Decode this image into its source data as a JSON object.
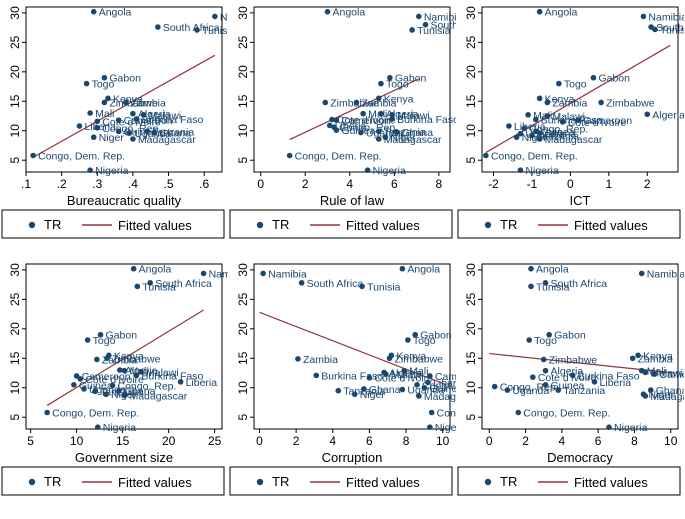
{
  "legend": {
    "dot_label": "TR",
    "line_label": "Fitted values"
  },
  "colors": {
    "points": "#1a476f",
    "fit": "#90353b",
    "text": "#000000",
    "frame": "#000000"
  },
  "chart_data": [
    {
      "type": "scatter",
      "xlabel": "Bureaucratic quality",
      "ylabel": "",
      "xlim": [
        0.1,
        0.65
      ],
      "ylim": [
        3,
        31
      ],
      "xticks": [
        0.1,
        0.2,
        0.3,
        0.4,
        0.5,
        0.6
      ],
      "xtick_labels": [
        ".1",
        ".2",
        ".3",
        ".4",
        ".5",
        ".6"
      ],
      "yticks": [
        5,
        10,
        15,
        20,
        25,
        30
      ],
      "fit": {
        "x": [
          0.12,
          0.63
        ],
        "y": [
          5.5,
          22.8
        ]
      },
      "points": [
        {
          "x": 0.29,
          "y": 30.2,
          "label": "Angola"
        },
        {
          "x": 0.63,
          "y": 29.4,
          "label": "Namibia"
        },
        {
          "x": 0.47,
          "y": 27.6,
          "label": "South Africa"
        },
        {
          "x": 0.58,
          "y": 27.1,
          "label": "Tunisia"
        },
        {
          "x": 0.32,
          "y": 19.0,
          "label": "Gabon"
        },
        {
          "x": 0.27,
          "y": 18.0,
          "label": "Togo"
        },
        {
          "x": 0.32,
          "y": 14.8,
          "label": "Zimbabwe"
        },
        {
          "x": 0.33,
          "y": 15.5,
          "label": "Kenya"
        },
        {
          "x": 0.38,
          "y": 14.8,
          "label": "Zambia"
        },
        {
          "x": 0.28,
          "y": 13.0,
          "label": "Mali"
        },
        {
          "x": 0.4,
          "y": 12.9,
          "label": "Algeria"
        },
        {
          "x": 0.43,
          "y": 12.7,
          "label": "Malawi"
        },
        {
          "x": 0.3,
          "y": 11.6,
          "label": "Cote d'Ivoire"
        },
        {
          "x": 0.36,
          "y": 11.8,
          "label": "Cameroon"
        },
        {
          "x": 0.41,
          "y": 12.0,
          "label": "Burkina Faso"
        },
        {
          "x": 0.25,
          "y": 10.8,
          "label": "Liberia"
        },
        {
          "x": 0.3,
          "y": 10.5,
          "label": "Congo, Rep."
        },
        {
          "x": 0.36,
          "y": 9.9,
          "label": "Guinea"
        },
        {
          "x": 0.39,
          "y": 9.6,
          "label": "Uganda"
        },
        {
          "x": 0.44,
          "y": 9.9,
          "label": "Tanzania"
        },
        {
          "x": 0.46,
          "y": 9.7,
          "label": "Ghana"
        },
        {
          "x": 0.29,
          "y": 8.9,
          "label": "Niger"
        },
        {
          "x": 0.4,
          "y": 8.6,
          "label": "Madagascar"
        },
        {
          "x": 0.12,
          "y": 5.8,
          "label": "Congo, Dem. Rep."
        },
        {
          "x": 0.28,
          "y": 3.3,
          "label": "Nigeria"
        }
      ]
    },
    {
      "type": "scatter",
      "xlabel": "Rule of law",
      "ylabel": "",
      "xlim": [
        -0.3,
        8.5
      ],
      "ylim": [
        3,
        31
      ],
      "xticks": [
        0,
        2,
        4,
        6,
        8
      ],
      "xtick_labels": [
        "0",
        "2",
        "4",
        "6",
        "8"
      ],
      "yticks": [
        5,
        10,
        15,
        20,
        25,
        30
      ],
      "fit": {
        "x": [
          1.3,
          7.1
        ],
        "y": [
          8.5,
          18.8
        ]
      },
      "points": [
        {
          "x": 3.0,
          "y": 30.2,
          "label": "Angola"
        },
        {
          "x": 7.1,
          "y": 29.4,
          "label": "Namibia"
        },
        {
          "x": 7.4,
          "y": 28.0,
          "label": "South Africa"
        },
        {
          "x": 6.8,
          "y": 27.1,
          "label": "Tunisia"
        },
        {
          "x": 5.8,
          "y": 19.0,
          "label": "Gabon"
        },
        {
          "x": 5.4,
          "y": 18.0,
          "label": "Togo"
        },
        {
          "x": 2.9,
          "y": 14.8,
          "label": "Zimbabwe"
        },
        {
          "x": 5.3,
          "y": 15.5,
          "label": "Kenya"
        },
        {
          "x": 4.3,
          "y": 14.8,
          "label": "Zambia"
        },
        {
          "x": 4.6,
          "y": 12.9,
          "label": "Mali"
        },
        {
          "x": 5.4,
          "y": 12.9,
          "label": "Algeria"
        },
        {
          "x": 5.9,
          "y": 12.7,
          "label": "Malawi"
        },
        {
          "x": 3.2,
          "y": 11.9,
          "label": "Cote d'Ivoire"
        },
        {
          "x": 3.4,
          "y": 11.8,
          "label": "Cameroon"
        },
        {
          "x": 5.9,
          "y": 12.0,
          "label": "Burkina Faso"
        },
        {
          "x": 3.1,
          "y": 10.9,
          "label": "Liberia"
        },
        {
          "x": 3.3,
          "y": 10.6,
          "label": "Congo, Rep."
        },
        {
          "x": 3.4,
          "y": 10.1,
          "label": "Guinea"
        },
        {
          "x": 4.5,
          "y": 9.7,
          "label": "Uganda"
        },
        {
          "x": 5.3,
          "y": 9.9,
          "label": "Tanzania"
        },
        {
          "x": 6.1,
          "y": 9.8,
          "label": "Ghana"
        },
        {
          "x": 5.6,
          "y": 8.9,
          "label": "Niger"
        },
        {
          "x": 5.3,
          "y": 8.6,
          "label": "Madagascar"
        },
        {
          "x": 1.3,
          "y": 5.8,
          "label": "Congo, Dem. Rep."
        },
        {
          "x": 4.8,
          "y": 3.3,
          "label": "Nigeria"
        }
      ]
    },
    {
      "type": "scatter",
      "xlabel": "ICT",
      "ylabel": "",
      "xlim": [
        -2.3,
        2.8
      ],
      "ylim": [
        3,
        31
      ],
      "xticks": [
        -2,
        -1,
        0,
        1,
        2
      ],
      "xtick_labels": [
        "-2",
        "-1",
        "0",
        "1",
        "2"
      ],
      "yticks": [
        5,
        10,
        15,
        20,
        25,
        30
      ],
      "fit": {
        "x": [
          -2.2,
          2.6
        ],
        "y": [
          6.3,
          24.5
        ]
      },
      "points": [
        {
          "x": -0.8,
          "y": 30.2,
          "label": "Angola"
        },
        {
          "x": 1.9,
          "y": 29.4,
          "label": "Namibia"
        },
        {
          "x": 2.1,
          "y": 27.6,
          "label": "South Africa"
        },
        {
          "x": 2.2,
          "y": 27.2,
          "label": "Tunisia"
        },
        {
          "x": 0.6,
          "y": 19.0,
          "label": "Gabon"
        },
        {
          "x": -0.3,
          "y": 18.0,
          "label": "Togo"
        },
        {
          "x": 0.8,
          "y": 14.8,
          "label": "Zimbabwe"
        },
        {
          "x": -0.8,
          "y": 15.5,
          "label": "Kenya"
        },
        {
          "x": -0.6,
          "y": 14.8,
          "label": "Zambia"
        },
        {
          "x": 2.0,
          "y": 12.8,
          "label": "Algeria"
        },
        {
          "x": -1.1,
          "y": 12.7,
          "label": "Mali"
        },
        {
          "x": -0.6,
          "y": 12.5,
          "label": "Malawi"
        },
        {
          "x": 0.2,
          "y": 11.8,
          "label": "Cameroon"
        },
        {
          "x": -0.2,
          "y": 11.5,
          "label": "Cote d'Ivoire"
        },
        {
          "x": -0.9,
          "y": 11.9,
          "label": "Burkina Faso"
        },
        {
          "x": -1.6,
          "y": 10.8,
          "label": "Liberia"
        },
        {
          "x": -1.2,
          "y": 10.4,
          "label": "Congo, Rep."
        },
        {
          "x": -0.9,
          "y": 9.9,
          "label": "Guinea"
        },
        {
          "x": -1.3,
          "y": 9.5,
          "label": "Uganda"
        },
        {
          "x": -0.8,
          "y": 9.6,
          "label": "Ghana"
        },
        {
          "x": -1.0,
          "y": 9.2,
          "label": "Tanzania"
        },
        {
          "x": -1.4,
          "y": 8.9,
          "label": "Niger"
        },
        {
          "x": -0.8,
          "y": 8.6,
          "label": "Madagascar"
        },
        {
          "x": -2.2,
          "y": 5.8,
          "label": "Congo, Dem. Rep."
        },
        {
          "x": -1.3,
          "y": 3.3,
          "label": "Nigeria"
        }
      ]
    },
    {
      "type": "scatter",
      "xlabel": "Government size",
      "ylabel": "",
      "xlim": [
        4.5,
        25.8
      ],
      "ylim": [
        3,
        31
      ],
      "xticks": [
        5,
        10,
        15,
        20,
        25
      ],
      "xtick_labels": [
        "5",
        "10",
        "15",
        "20",
        "25"
      ],
      "yticks": [
        5,
        10,
        15,
        20,
        25,
        30
      ],
      "fit": {
        "x": [
          6.8,
          23.8
        ],
        "y": [
          7.0,
          23.2
        ]
      },
      "points": [
        {
          "x": 16.2,
          "y": 30.2,
          "label": "Angola"
        },
        {
          "x": 23.8,
          "y": 29.4,
          "label": "Namibia"
        },
        {
          "x": 18.0,
          "y": 27.8,
          "label": "South Africa"
        },
        {
          "x": 16.6,
          "y": 27.2,
          "label": "Tunisia"
        },
        {
          "x": 12.6,
          "y": 19.0,
          "label": "Gabon"
        },
        {
          "x": 11.2,
          "y": 18.1,
          "label": "Togo"
        },
        {
          "x": 13.5,
          "y": 15.5,
          "label": "Kenya"
        },
        {
          "x": 13.3,
          "y": 15.0,
          "label": "Zimbabwe"
        },
        {
          "x": 12.2,
          "y": 14.8,
          "label": "Zambia"
        },
        {
          "x": 14.7,
          "y": 13.0,
          "label": "Algeria"
        },
        {
          "x": 15.2,
          "y": 12.9,
          "label": "Mali"
        },
        {
          "x": 17.0,
          "y": 12.7,
          "label": "Malawi"
        },
        {
          "x": 10.0,
          "y": 12.0,
          "label": "Cameroon"
        },
        {
          "x": 16.5,
          "y": 12.1,
          "label": "Burkina Faso"
        },
        {
          "x": 10.4,
          "y": 11.5,
          "label": "Cote d'Ivoire"
        },
        {
          "x": 21.3,
          "y": 11.0,
          "label": "Liberia"
        },
        {
          "x": 9.7,
          "y": 10.5,
          "label": "Guinea"
        },
        {
          "x": 13.9,
          "y": 10.4,
          "label": "Congo, Rep."
        },
        {
          "x": 10.8,
          "y": 9.8,
          "label": "Uganda"
        },
        {
          "x": 12.0,
          "y": 9.4,
          "label": "Tanzania"
        },
        {
          "x": 14.6,
          "y": 9.5,
          "label": "Ghana"
        },
        {
          "x": 13.2,
          "y": 8.9,
          "label": "Niger"
        },
        {
          "x": 15.2,
          "y": 8.7,
          "label": "Madagascar"
        },
        {
          "x": 6.8,
          "y": 5.8,
          "label": "Congo, Dem. Rep."
        },
        {
          "x": 12.3,
          "y": 3.3,
          "label": "Nigeria"
        }
      ]
    },
    {
      "type": "scatter",
      "xlabel": "Corruption",
      "ylabel": "",
      "xlim": [
        -0.3,
        10.4
      ],
      "ylim": [
        3,
        31
      ],
      "xticks": [
        0,
        2,
        4,
        6,
        8,
        10
      ],
      "xtick_labels": [
        "0",
        "2",
        "4",
        "6",
        "8",
        "10"
      ],
      "yticks": [
        5,
        10,
        15,
        20,
        25,
        30
      ],
      "fit": {
        "x": [
          0.0,
          10.2
        ],
        "y": [
          22.8,
          10.5
        ]
      },
      "points": [
        {
          "x": 7.8,
          "y": 30.2,
          "label": "Angola"
        },
        {
          "x": 0.2,
          "y": 29.4,
          "label": "Namibia"
        },
        {
          "x": 2.3,
          "y": 27.8,
          "label": "South Africa"
        },
        {
          "x": 5.6,
          "y": 27.2,
          "label": "Tunisia"
        },
        {
          "x": 8.5,
          "y": 19.0,
          "label": "Gabon"
        },
        {
          "x": 8.1,
          "y": 18.1,
          "label": "Togo"
        },
        {
          "x": 7.2,
          "y": 15.5,
          "label": "Kenya"
        },
        {
          "x": 7.1,
          "y": 15.0,
          "label": "Zimbabwe"
        },
        {
          "x": 2.1,
          "y": 14.9,
          "label": "Zambia"
        },
        {
          "x": 7.9,
          "y": 12.9,
          "label": "Mali"
        },
        {
          "x": 6.8,
          "y": 12.6,
          "label": "Algeria"
        },
        {
          "x": 6.9,
          "y": 12.3,
          "label": "Malawi"
        },
        {
          "x": 9.3,
          "y": 12.0,
          "label": "Cameroon"
        },
        {
          "x": 3.1,
          "y": 12.1,
          "label": "Burkina Faso"
        },
        {
          "x": 6.0,
          "y": 11.7,
          "label": "Cote d'Ivoire"
        },
        {
          "x": 9.2,
          "y": 10.9,
          "label": "Liberia"
        },
        {
          "x": 8.6,
          "y": 10.5,
          "label": "Congo, Rep."
        },
        {
          "x": 9.0,
          "y": 10.0,
          "label": "Guinea"
        },
        {
          "x": 7.8,
          "y": 9.7,
          "label": "Uganda"
        },
        {
          "x": 4.3,
          "y": 9.5,
          "label": "Tanzania"
        },
        {
          "x": 5.7,
          "y": 9.8,
          "label": "Ghana"
        },
        {
          "x": 5.2,
          "y": 8.9,
          "label": "Niger"
        },
        {
          "x": 8.7,
          "y": 8.6,
          "label": "Madagascar"
        },
        {
          "x": 9.4,
          "y": 5.8,
          "label": "Congo, Dem. Rep."
        },
        {
          "x": 9.3,
          "y": 3.3,
          "label": "Nigeria"
        }
      ]
    },
    {
      "type": "scatter",
      "xlabel": "Democracy",
      "ylabel": "",
      "xlim": [
        -0.4,
        10.4
      ],
      "ylim": [
        3,
        31
      ],
      "xticks": [
        0,
        2,
        4,
        6,
        8,
        10
      ],
      "xtick_labels": [
        "0",
        "2",
        "4",
        "6",
        "8",
        "10"
      ],
      "yticks": [
        5,
        10,
        15,
        20,
        25,
        30
      ],
      "fit": {
        "x": [
          0.0,
          10.2
        ],
        "y": [
          15.8,
          12.5
        ]
      },
      "points": [
        {
          "x": 2.3,
          "y": 30.2,
          "label": "Angola"
        },
        {
          "x": 8.4,
          "y": 29.4,
          "label": "Namibia"
        },
        {
          "x": 3.1,
          "y": 27.8,
          "label": "South Africa"
        },
        {
          "x": 2.3,
          "y": 27.2,
          "label": "Tunisia"
        },
        {
          "x": 3.3,
          "y": 19.0,
          "label": "Gabon"
        },
        {
          "x": 2.2,
          "y": 18.1,
          "label": "Togo"
        },
        {
          "x": 8.2,
          "y": 15.5,
          "label": "Kenya"
        },
        {
          "x": 7.9,
          "y": 15.0,
          "label": "Zambia"
        },
        {
          "x": 3.0,
          "y": 14.8,
          "label": "Zimbabwe"
        },
        {
          "x": 3.1,
          "y": 12.9,
          "label": "Algeria"
        },
        {
          "x": 8.4,
          "y": 12.9,
          "label": "Mali"
        },
        {
          "x": 8.6,
          "y": 12.6,
          "label": "Malawi"
        },
        {
          "x": 9.1,
          "y": 12.3,
          "label": "Cameroon"
        },
        {
          "x": 4.6,
          "y": 12.1,
          "label": "Burkina Faso"
        },
        {
          "x": 2.4,
          "y": 11.8,
          "label": "Cote d'Ivoire"
        },
        {
          "x": 5.8,
          "y": 11.0,
          "label": "Liberia"
        },
        {
          "x": 0.3,
          "y": 10.2,
          "label": "Congo, Rep."
        },
        {
          "x": 3.1,
          "y": 10.5,
          "label": "Guinea"
        },
        {
          "x": 1.0,
          "y": 9.6,
          "label": "Uganda"
        },
        {
          "x": 3.8,
          "y": 9.6,
          "label": "Tanzania"
        },
        {
          "x": 8.9,
          "y": 9.6,
          "label": "Ghana"
        },
        {
          "x": 8.5,
          "y": 8.9,
          "label": "Niger"
        },
        {
          "x": 8.6,
          "y": 8.6,
          "label": "Madagascar"
        },
        {
          "x": 1.6,
          "y": 5.8,
          "label": "Congo, Dem. Rep."
        },
        {
          "x": 6.6,
          "y": 3.3,
          "label": "Nigeria"
        }
      ]
    }
  ]
}
